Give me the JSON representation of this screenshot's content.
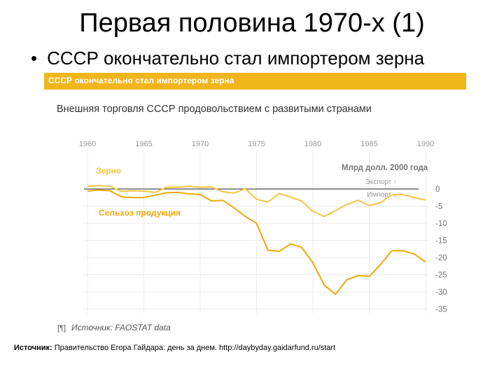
{
  "slide": {
    "title": "Первая половина 1970-х (1)",
    "bullet": "•",
    "bullet_text": "СССР окончательно стал импортером зерна"
  },
  "banner": {
    "text": "СССР окончательно стал импортером зерна",
    "color": "#f2b51c"
  },
  "chart_data": {
    "type": "line",
    "subtitle": "Внешняя торговля СССР продовольствием с развитыми странами",
    "x_ticks": [
      "1960",
      "1965",
      "1970",
      "1975",
      "1980",
      "1985",
      "1990"
    ],
    "xlim": [
      1960,
      1990
    ],
    "ylabel": "Млрд долл. 2000 года",
    "y_ticks": [
      "0",
      "-5",
      "-10",
      "-15",
      "-20",
      "-25",
      "-30",
      "-35"
    ],
    "ylim": [
      -35,
      0
    ],
    "grid": true,
    "legend": {
      "export": "Экспорт ↑",
      "import": "Импорт ↓"
    },
    "series": [
      {
        "name": "Зерно",
        "color": "#f6c443",
        "x": [
          1960,
          1961,
          1962,
          1963,
          1964,
          1965,
          1966,
          1967,
          1968,
          1969,
          1970,
          1971,
          1972,
          1973,
          1974,
          1975,
          1976,
          1977,
          1978,
          1979,
          1980,
          1981,
          1982,
          1983,
          1984,
          1985,
          1986,
          1987,
          1988,
          1989,
          1990
        ],
        "values": [
          0.8,
          1.0,
          0.8,
          -0.7,
          -0.5,
          -0.6,
          -1.0,
          0.5,
          0.5,
          0.8,
          0.5,
          0.6,
          -0.8,
          -1.2,
          0.1,
          -3.0,
          -3.8,
          -1.3,
          -2.3,
          -3.5,
          -6.5,
          -8.0,
          -6.3,
          -4.5,
          -3.3,
          -4.8,
          -4.0,
          -1.7,
          -1.6,
          -2.5,
          -3.2
        ]
      },
      {
        "name": "Сельхоз продукция",
        "color": "#f0a80b",
        "x": [
          1960,
          1961,
          1962,
          1963,
          1964,
          1965,
          1966,
          1967,
          1968,
          1969,
          1970,
          1971,
          1972,
          1973,
          1974,
          1975,
          1976,
          1977,
          1978,
          1979,
          1980,
          1981,
          1982,
          1983,
          1984,
          1985,
          1986,
          1987,
          1988,
          1989,
          1990
        ],
        "values": [
          -0.6,
          -0.3,
          -0.5,
          -2.3,
          -2.5,
          -2.5,
          -1.8,
          -1.1,
          -1.0,
          -1.4,
          -1.6,
          -3.5,
          -3.3,
          -5.5,
          -8.0,
          -10.0,
          -17.8,
          -18.2,
          -16.0,
          -17.0,
          -21.5,
          -28.0,
          -30.7,
          -26.5,
          -25.2,
          -25.5,
          -22.0,
          -18.0,
          -18.0,
          -19.0,
          -21.3
        ]
      }
    ]
  },
  "source": {
    "icon": "[¶]",
    "text": "Источник: FAOSTAT data"
  },
  "footer": {
    "label": "Источник:",
    "text": "Правительство Егора Гайдара: день за днем. http://daybyday.gaidarfund.ru/start"
  }
}
